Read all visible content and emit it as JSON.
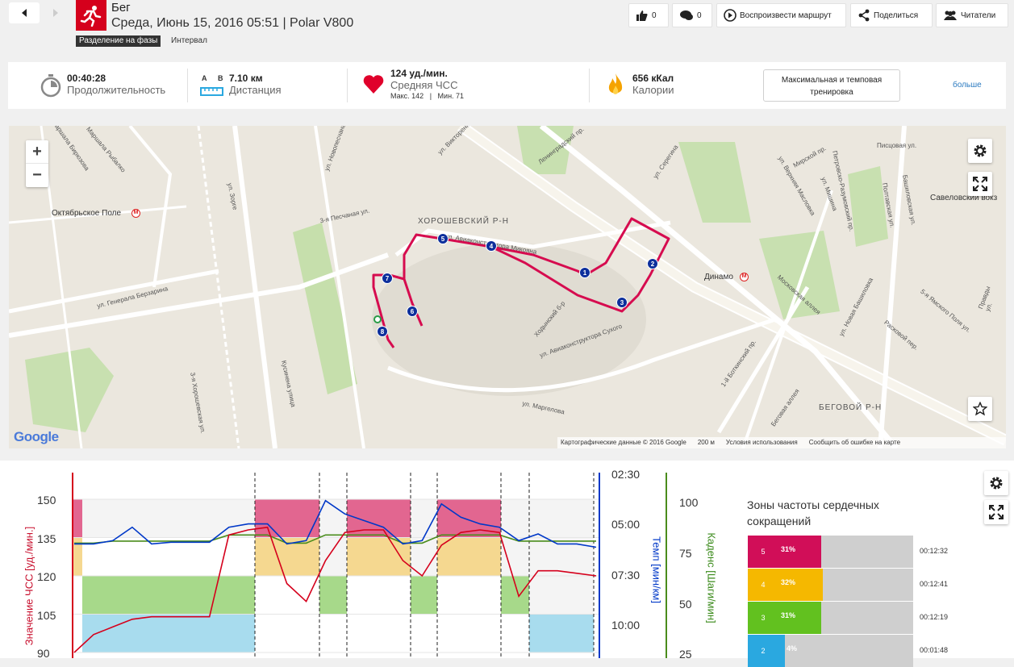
{
  "header": {
    "sport": "Бег",
    "subtitle": "Среда, Июнь 15, 2016 05:51 | Polar V800",
    "phase_tag": "Разделение на фазы",
    "phase_other": "Интервал",
    "buttons": {
      "likes": "0",
      "comments": "0",
      "replay": "Воспроизвести маршрут",
      "share": "Поделиться",
      "followers": "Читатели"
    }
  },
  "summary": {
    "duration_value": "00:40:28",
    "duration_label": "Продолжительность",
    "distance_a": "A",
    "distance_b": "B",
    "distance_value": "7.10 км",
    "distance_label": "Дистанция",
    "hr_value": "124 уд./мин.",
    "hr_label": "Средняя ЧСС",
    "hr_max": "Макс. 142",
    "hr_min": "Мин. 71",
    "hr_sep": "|",
    "calories_value": "656 кКал",
    "calories_label": "Калории",
    "training_benefit": "Максимальная и темповая тренировка",
    "more": "больше"
  },
  "map": {
    "labels": [
      "Октябрьское Поле",
      "ХОРОШЕВСКИЙ Р-Н",
      "Динамо",
      "БЕГОВОЙ Р-Н",
      "Савеловский вокз",
      "ул. Генерала Берзарина",
      "3-я Песчаная ул.",
      "Кусинена улица",
      "ул. Зорге",
      "Ходынский б-р",
      "ул. Авиаконструктора Сухого",
      "ул. Авиаконструктора Микояна",
      "Ленинградский пр.",
      "Московская аллея",
      "ул. Новая Башиловка",
      "ул. Маргелова",
      "ул. Серегина",
      "Петровско-Разумовский пр.",
      "Писцовая ул.",
      "Мирской пр.",
      "Расковой пер.",
      "Беговая аллея",
      "1-й Боткинский пр.",
      "Правды ул.",
      "5-я Ямского Поля ул.",
      "3-я Хорошевская ул.",
      "Маршала Рыбалко",
      "маршала Бирюзова",
      "ул. Викторенко",
      "ул. Новопесчаная",
      "Башиловская ул.",
      "Полтавская ул.",
      "ул. Верхняя Масловка",
      "ул. Мишина"
    ],
    "markers": [
      "1",
      "2",
      "3",
      "4",
      "5",
      "6",
      "7",
      "8"
    ],
    "attribution": "Картографические данные © 2016 Google",
    "scale": "200 м",
    "terms": "Условия использования",
    "report": "Сообщить об ошибке на карте",
    "google": "Google",
    "zoom_in": "+",
    "zoom_out": "−"
  },
  "chart": {
    "left_axis_label": "Значение ЧСС [уд./мин.]",
    "left_ticks": [
      "150",
      "135",
      "120",
      "105",
      "90"
    ],
    "pace_axis_label": "Темп [мин/км]",
    "pace_ticks": [
      "02:30",
      "05:00",
      "07:30",
      "10:00"
    ],
    "cadence_axis_label": "Каденс [Шаги/мин]",
    "cadence_ticks": [
      "100",
      "75",
      "50",
      "25"
    ]
  },
  "chart_data": {
    "type": "line",
    "ylim_hr": [
      90,
      155
    ],
    "series": [
      {
        "name": "Значение ЧСС [уд./мин.]",
        "color": "#d5001c",
        "y": [
          71,
          97,
          100,
          103,
          104,
          104,
          104,
          104,
          136,
          138,
          139,
          117,
          110,
          126,
          137,
          138,
          138,
          126,
          120,
          132,
          137,
          138,
          137,
          112,
          122,
          122,
          121,
          120
        ]
      },
      {
        "name": "Темп [мин/км]",
        "color": "#0038c8",
        "y": [
          "05:30",
          "05:30",
          "05:20",
          "04:40",
          "05:30",
          "05:25",
          "05:25",
          "05:25",
          "04:40",
          "04:30",
          "04:30",
          "05:30",
          "05:20",
          "03:20",
          "04:00",
          "04:20",
          "04:40",
          "05:30",
          "05:20",
          "03:30",
          "04:10",
          "04:30",
          "04:40",
          "05:20",
          "05:00",
          "05:30",
          "05:30",
          "05:40"
        ]
      },
      {
        "name": "Каденс [Шаги/мин]",
        "color": "#4a8c1c",
        "y": [
          80,
          80,
          81,
          81,
          81,
          81,
          81,
          81,
          84,
          84,
          84,
          80,
          80,
          84,
          84,
          84,
          84,
          80,
          80,
          84,
          84,
          84,
          84,
          81,
          81,
          81,
          81,
          81
        ]
      }
    ],
    "zones": [
      {
        "zone": "5",
        "from": 135,
        "to": 150,
        "color": "#e1306c"
      },
      {
        "zone": "4",
        "from": 120,
        "to": 135,
        "color": "#f7c230"
      },
      {
        "zone": "3",
        "from": 105,
        "to": 120,
        "color": "#6ac22b"
      },
      {
        "zone": "2",
        "from": 90,
        "to": 105,
        "color": "#3aaee0"
      }
    ]
  },
  "zones_panel": {
    "title": "Зоны частоты сердечных сокращений",
    "rows": [
      {
        "zone": "5",
        "pct": "31%",
        "time": "00:12:32",
        "color": "#d10e58",
        "fraction": 0.31
      },
      {
        "zone": "4",
        "pct": "32%",
        "time": "00:12:41",
        "color": "#f5b800",
        "fraction": 0.32
      },
      {
        "zone": "3",
        "pct": "31%",
        "time": "00:12:19",
        "color": "#62c11f",
        "fraction": 0.31
      },
      {
        "zone": "2",
        "pct": "4%",
        "time": "00:01:48",
        "color": "#2aa8e0",
        "fraction": 0.04
      }
    ]
  }
}
